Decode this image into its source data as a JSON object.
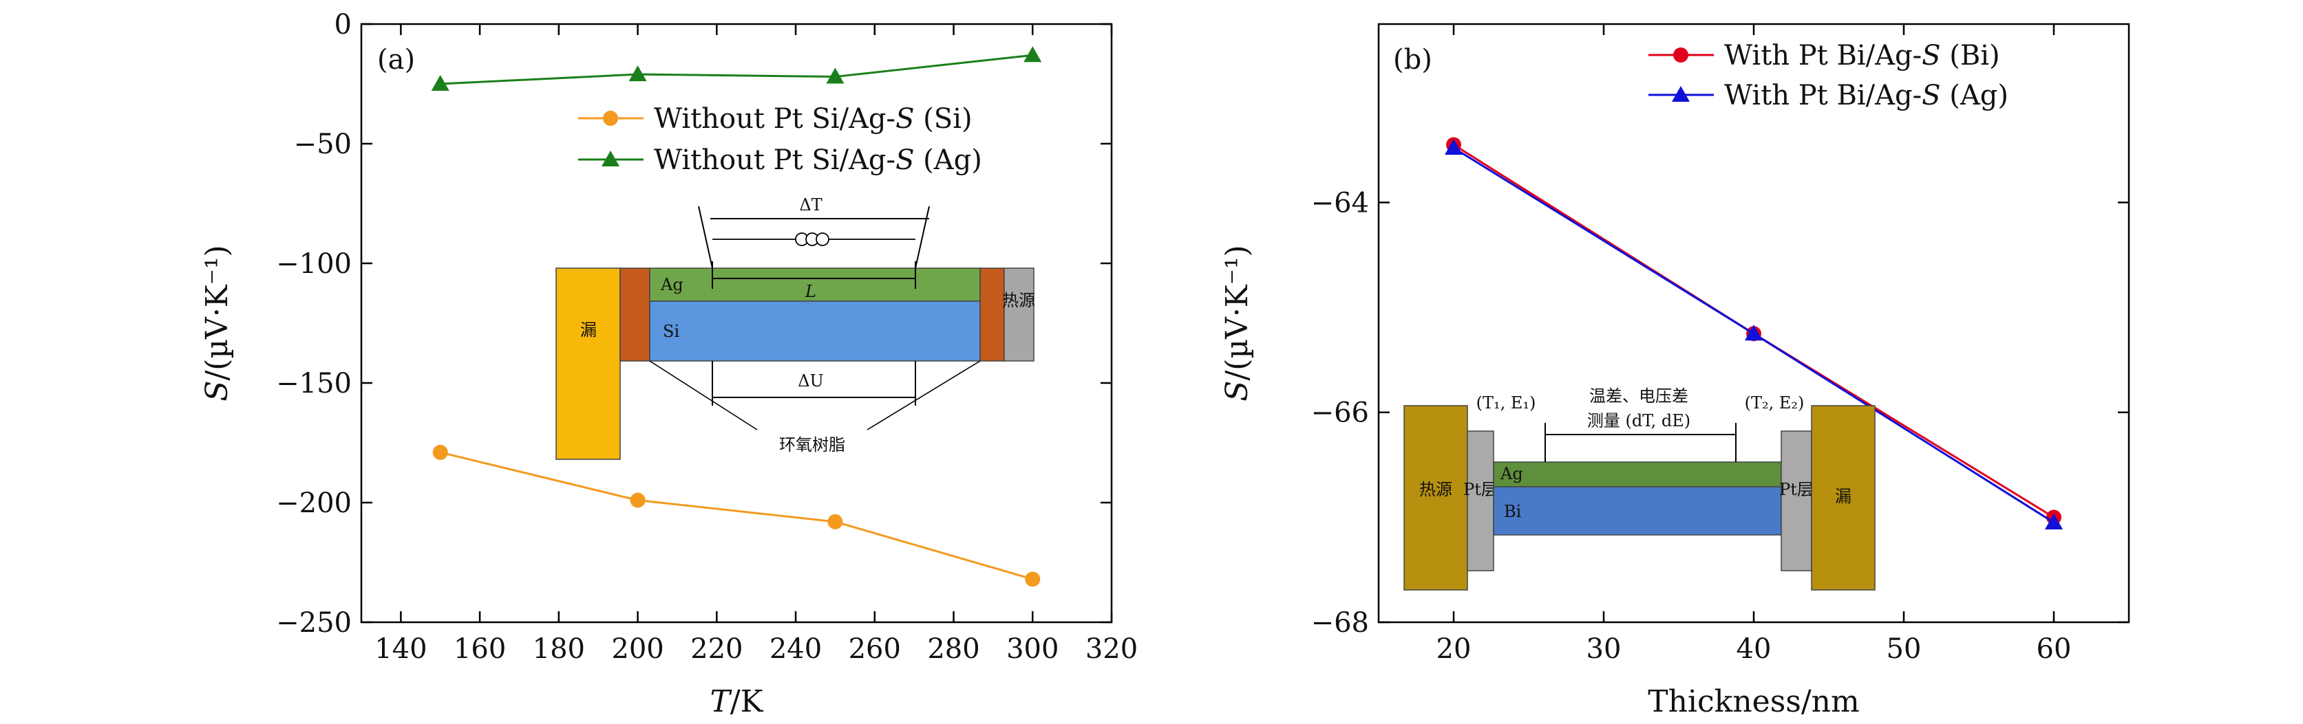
{
  "chart_data": [
    {
      "type": "line",
      "panel_label": "(a)",
      "xlabel_var": "T",
      "xlabel_unit": "/K",
      "ylabel_var": "S",
      "ylabel_unit": "/(µV·K⁻¹)",
      "xlim": [
        130,
        320
      ],
      "ylim": [
        -250,
        0
      ],
      "xticks": [
        140,
        160,
        180,
        200,
        220,
        240,
        260,
        280,
        300,
        320
      ],
      "yticks": [
        0,
        -50,
        -100,
        -150,
        -200,
        -250
      ],
      "ytick_labels": [
        "0",
        "−50",
        "−100",
        "−150",
        "−200",
        "−250"
      ],
      "legend_position": "top-right",
      "series": [
        {
          "name": "Without Pt Si/Ag-S (Si)",
          "legend_prefix": "Without Pt Si/Ag-",
          "legend_var": "S",
          "legend_suffix": " (Si)",
          "color": "#f39a1f",
          "marker": "circle",
          "x": [
            150,
            200,
            250,
            300
          ],
          "y": [
            -179,
            -199,
            -208,
            -232
          ]
        },
        {
          "name": "Without Pt Si/Ag-S (Ag)",
          "legend_prefix": "Without Pt Si/Ag-",
          "legend_var": "S",
          "legend_suffix": " (Ag)",
          "color": "#1a7f1a",
          "marker": "triangle",
          "x": [
            150,
            200,
            250,
            300
          ],
          "y": [
            -25,
            -21,
            -22,
            -13
          ]
        }
      ],
      "inset": {
        "sink": "漏",
        "source": "热源",
        "layer_top": "Ag",
        "layer_bottom": "Si",
        "delta_t": "ΔT",
        "length": "L",
        "delta_u": "ΔU",
        "epoxy": "环氧树脂"
      }
    },
    {
      "type": "line",
      "panel_label": "(b)",
      "xlabel": "Thickness/nm",
      "ylabel_var": "S",
      "ylabel_unit": "/(µV·K⁻¹)",
      "xlim": [
        15,
        65
      ],
      "ylim": [
        -68,
        -62.3
      ],
      "xticks": [
        20,
        30,
        40,
        50,
        60
      ],
      "yticks": [
        -64,
        -66,
        -68
      ],
      "ytick_labels": [
        "−64",
        "−66",
        "−68"
      ],
      "legend_position": "top-right",
      "series": [
        {
          "name": "With Pt Bi/Ag-S (Bi)",
          "legend_prefix": "With Pt Bi/Ag-",
          "legend_var": "S",
          "legend_suffix": " (Bi)",
          "color": "#e0001b",
          "marker": "circle",
          "x": [
            20,
            40,
            60
          ],
          "y": [
            -63.45,
            -65.25,
            -67.0
          ]
        },
        {
          "name": "With Pt Bi/Ag-S (Ag)",
          "legend_prefix": "With Pt Bi/Ag-",
          "legend_var": "S",
          "legend_suffix": " (Ag)",
          "color": "#1010d8",
          "marker": "triangle",
          "x": [
            20,
            40,
            60
          ],
          "y": [
            -63.48,
            -65.25,
            -67.05
          ]
        }
      ],
      "inset": {
        "source": "热源",
        "sink": "漏",
        "pt_left": "Pt层",
        "pt_right": "Pt层",
        "layer_top": "Ag",
        "layer_bottom": "Bi",
        "label_left": "(T₁, E₁)",
        "label_right": "(T₂, E₂)",
        "measure_line1": "温差、电压差",
        "measure_line2": "测量 (dT, dE)"
      }
    }
  ]
}
